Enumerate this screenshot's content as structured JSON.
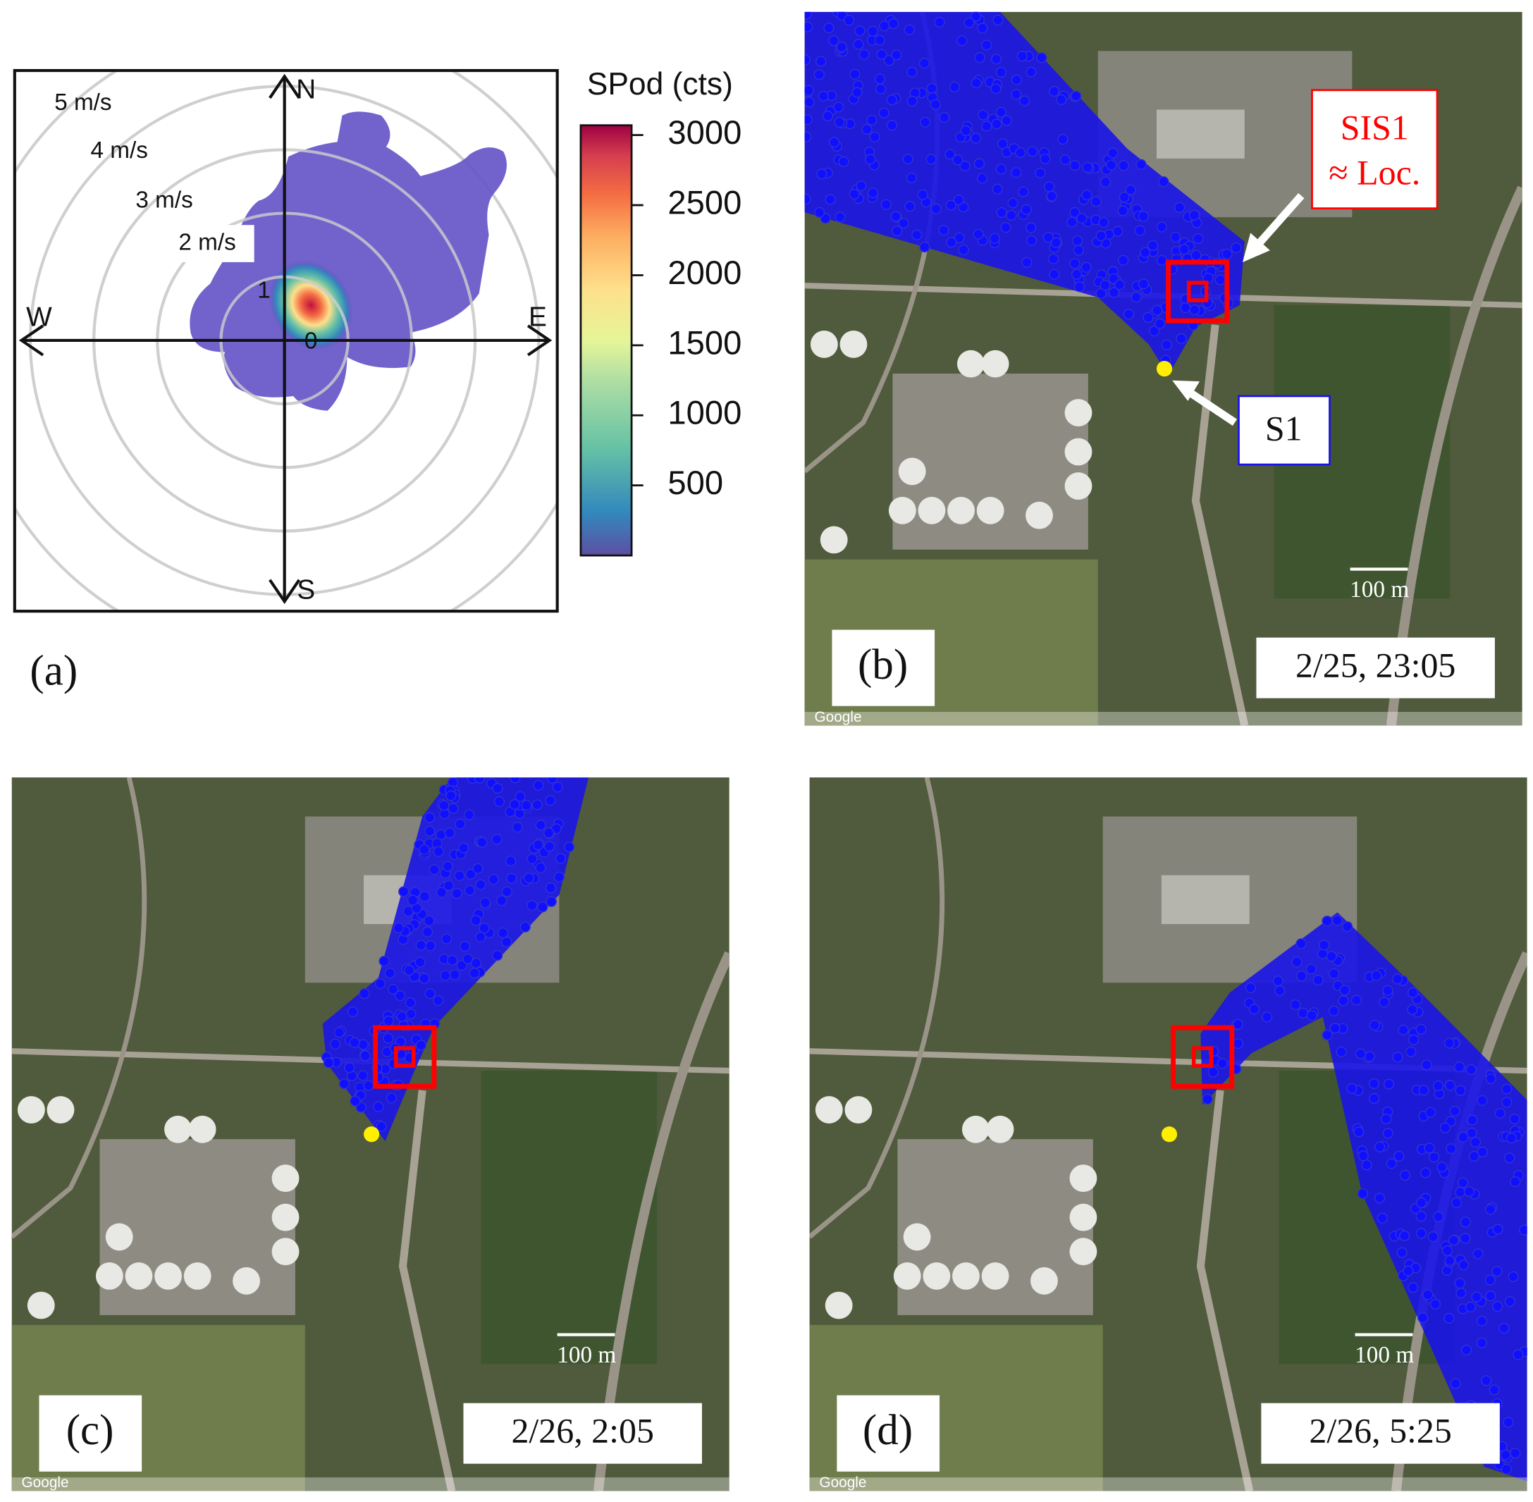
{
  "panel_a": {
    "label": "(a)",
    "speed_labels": [
      "5 m/s",
      "4 m/s",
      "3 m/s",
      "2 m/s"
    ],
    "ring_labels": [
      "1",
      "0"
    ],
    "directions": [
      "N",
      "E",
      "S",
      "W"
    ],
    "colorbar": {
      "title": "SPod (cts)",
      "ticks": [
        500,
        1000,
        1500,
        2000,
        2500,
        3000
      ],
      "range": [
        0,
        3070
      ]
    }
  },
  "panels": [
    {
      "label": "(b)",
      "time": "2/25, 23:05",
      "scale": "100 m",
      "credit": "Google"
    },
    {
      "label": "(c)",
      "time": "2/26, 2:05",
      "scale": "100 m",
      "credit": "Google"
    },
    {
      "label": "(d)",
      "time": "2/26, 5:25",
      "scale": "100 m",
      "credit": "Google"
    }
  ],
  "annotations": {
    "source": "SIS1",
    "source_note": "≈ Loc.",
    "sensor": "S1"
  }
}
